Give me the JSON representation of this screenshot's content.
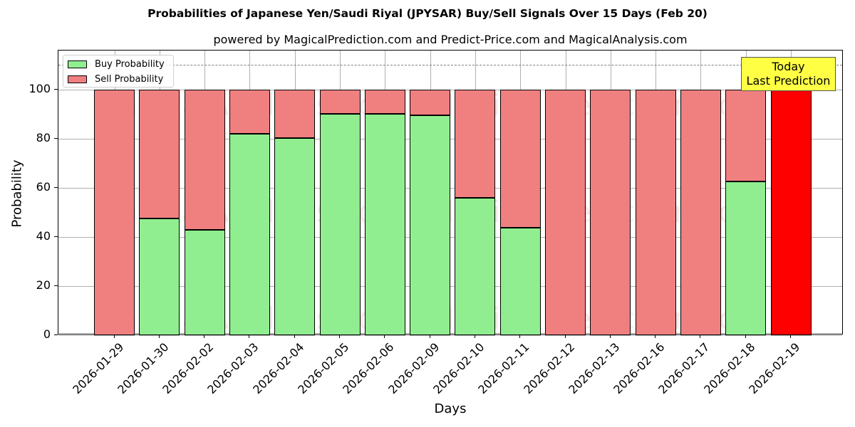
{
  "chart_data": {
    "type": "bar",
    "stacked": true,
    "title": "Probabilities of Japanese Yen/Saudi Riyal (JPYSAR) Buy/Sell Signals Over 15 Days (Feb 20)",
    "subtitle": "powered by MagicalPrediction.com and Predict-Price.com and MagicalAnalysis.com",
    "xlabel": "Days",
    "ylabel": "Probability",
    "ylim": [
      0,
      115
    ],
    "yticks": [
      0,
      20,
      40,
      60,
      80,
      100
    ],
    "grid": true,
    "legend_position": "upper left",
    "categories": [
      "2026-01-29",
      "2026-01-30",
      "2026-02-02",
      "2026-02-03",
      "2026-02-04",
      "2026-02-05",
      "2026-02-06",
      "2026-02-09",
      "2026-02-10",
      "2026-02-11",
      "2026-02-12",
      "2026-02-13",
      "2026-02-16",
      "2026-02-17",
      "2026-02-18",
      "2026-02-19"
    ],
    "series": [
      {
        "name": "Buy Probability",
        "color": "#90ee90",
        "values": [
          0,
          47.5,
          43.0,
          81.9,
          80.1,
          90.2,
          90.2,
          89.4,
          55.8,
          43.6,
          0,
          0,
          0,
          0,
          62.5,
          0
        ]
      },
      {
        "name": "Sell Probability",
        "color": "#f08080",
        "values": [
          100,
          52.5,
          57.0,
          18.1,
          19.9,
          9.8,
          9.8,
          10.6,
          44.2,
          56.4,
          100,
          100,
          100,
          100,
          37.5,
          100
        ]
      }
    ],
    "highlight": {
      "category": "2026-02-19",
      "color": "#ff0000"
    },
    "reference_line": {
      "y": 110,
      "style": "dashed",
      "color": "#808080"
    },
    "annotations": [
      {
        "text": "Today\nLast Prediction",
        "x": "2026-02-19",
        "y": 105,
        "background": "#ffff44"
      }
    ],
    "watermarks": [
      "MagicalAnalysis.com",
      "MagicalPrediction.com"
    ]
  },
  "annotation": {
    "line1": "Today",
    "line2": "Last Prediction"
  },
  "legend": {
    "buy": "Buy Probability",
    "sell": "Sell Probability"
  }
}
